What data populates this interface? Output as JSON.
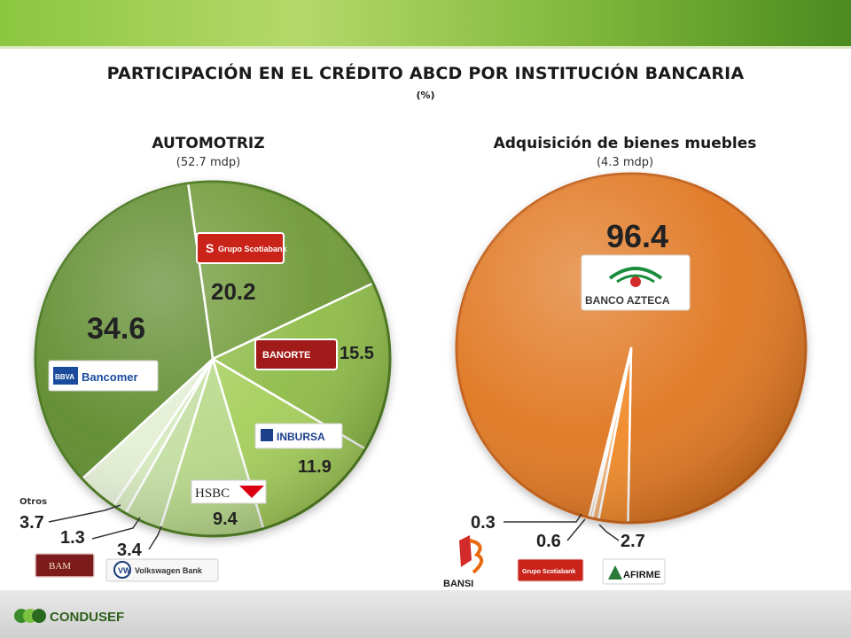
{
  "header": {
    "title": "PARTICIPACIÓN EN EL CRÉDITO ABCD POR INSTITUCIÓN BANCARIA",
    "unit": "(%)"
  },
  "footer": {
    "logo_text": "CONDUSEF"
  },
  "chart_data": [
    {
      "type": "pie",
      "title": "AUTOMOTRIZ",
      "subtitle": "(52.7 mdp)",
      "slices": [
        {
          "label": "Scotiabank",
          "value": 20.2,
          "display": "20.2",
          "logo": "Grupo Scotiabank",
          "color": "#6f9a38"
        },
        {
          "label": "Banorte",
          "value": 15.5,
          "display": "15.5",
          "logo": "BANORTE",
          "color": "#8fbc48"
        },
        {
          "label": "Inbursa",
          "value": 11.9,
          "display": "11.9",
          "logo": "INBURSA",
          "color": "#a6cf5c"
        },
        {
          "label": "HSBC",
          "value": 9.4,
          "display": "9.4",
          "logo": "HSBC",
          "color": "#b8d98a"
        },
        {
          "label": "Volkswagen Bank",
          "value": 3.4,
          "display": "3.4",
          "logo": "Volkswagen Bank",
          "color": "#c4dfa4"
        },
        {
          "label": "BAM",
          "value": 1.3,
          "display": "1.3",
          "logo": "BAM",
          "color": "#d6e9be"
        },
        {
          "label": "Otros",
          "value": 3.7,
          "display": "3.7",
          "logo": "",
          "color": "#e4efd4"
        },
        {
          "label": "BBVA Bancomer",
          "value": 34.6,
          "display": "34.6",
          "logo": "Bancomer",
          "color": "#5f8c2e"
        }
      ],
      "otros_label": "Otros"
    },
    {
      "type": "pie",
      "title": "Adquisición de bienes muebles",
      "subtitle": "(4.3 mdp)",
      "slices": [
        {
          "label": "Banco Azteca",
          "value": 96.4,
          "display": "96.4",
          "logo": "BANCO AZTECA",
          "color": "#e07820"
        },
        {
          "label": "Afirme",
          "value": 2.7,
          "display": "2.7",
          "logo": "AFIRME",
          "color": "#f08a2c"
        },
        {
          "label": "Scotiabank",
          "value": 0.6,
          "display": "0.6",
          "logo": "Grupo Scotiabank",
          "color": "#f5b071"
        },
        {
          "label": "BANSI",
          "value": 0.3,
          "display": "0.3",
          "logo": "BANSI",
          "color": "#f9cfa3"
        }
      ]
    }
  ],
  "colors": {
    "green_dark": "#4e7a24",
    "orange_dark": "#c4621a",
    "scotia_red": "#d42a1e",
    "banorte_red": "#a91d1d"
  }
}
